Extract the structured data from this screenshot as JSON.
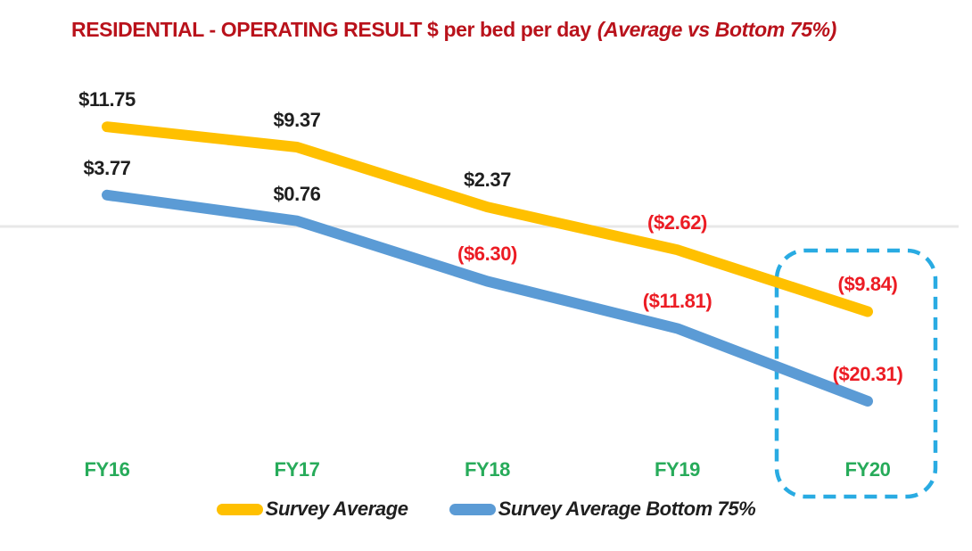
{
  "title": {
    "main": "RESIDENTIAL - OPERATING RESULT $ per bed per day",
    "emphasis": "(Average vs Bottom 75%)",
    "color": "#B9121B"
  },
  "chart_data": {
    "type": "line",
    "categories": [
      "FY16",
      "FY17",
      "FY18",
      "FY19",
      "FY20"
    ],
    "series": [
      {
        "name": "Survey Average",
        "color": "#FFC000",
        "values": [
          11.75,
          9.37,
          2.37,
          -2.62,
          -9.84
        ],
        "labels": [
          "$11.75",
          "$9.37",
          "$2.37",
          "($2.62)",
          "($9.84)"
        ]
      },
      {
        "name": "Survey Average Bottom 75%",
        "color": "#5B9BD5",
        "values": [
          3.77,
          0.76,
          -6.3,
          -11.81,
          -20.31
        ],
        "labels": [
          "$3.77",
          "$0.76",
          "($6.30)",
          "($11.81)",
          "($20.31)"
        ]
      }
    ],
    "xlabel": "",
    "ylabel": "",
    "grid": "zero-line-only",
    "zero_line_color": "#E8E8E8",
    "label_color_positive": "#1F1F1F",
    "label_color_negative": "#EC1C24",
    "category_label_color": "#27AB5A",
    "legend_position": "bottom",
    "legend_text_color": "#1F1F1F",
    "highlight": {
      "category": "FY20",
      "style": "dashed-rounded-box",
      "color": "#29ABE2"
    }
  }
}
